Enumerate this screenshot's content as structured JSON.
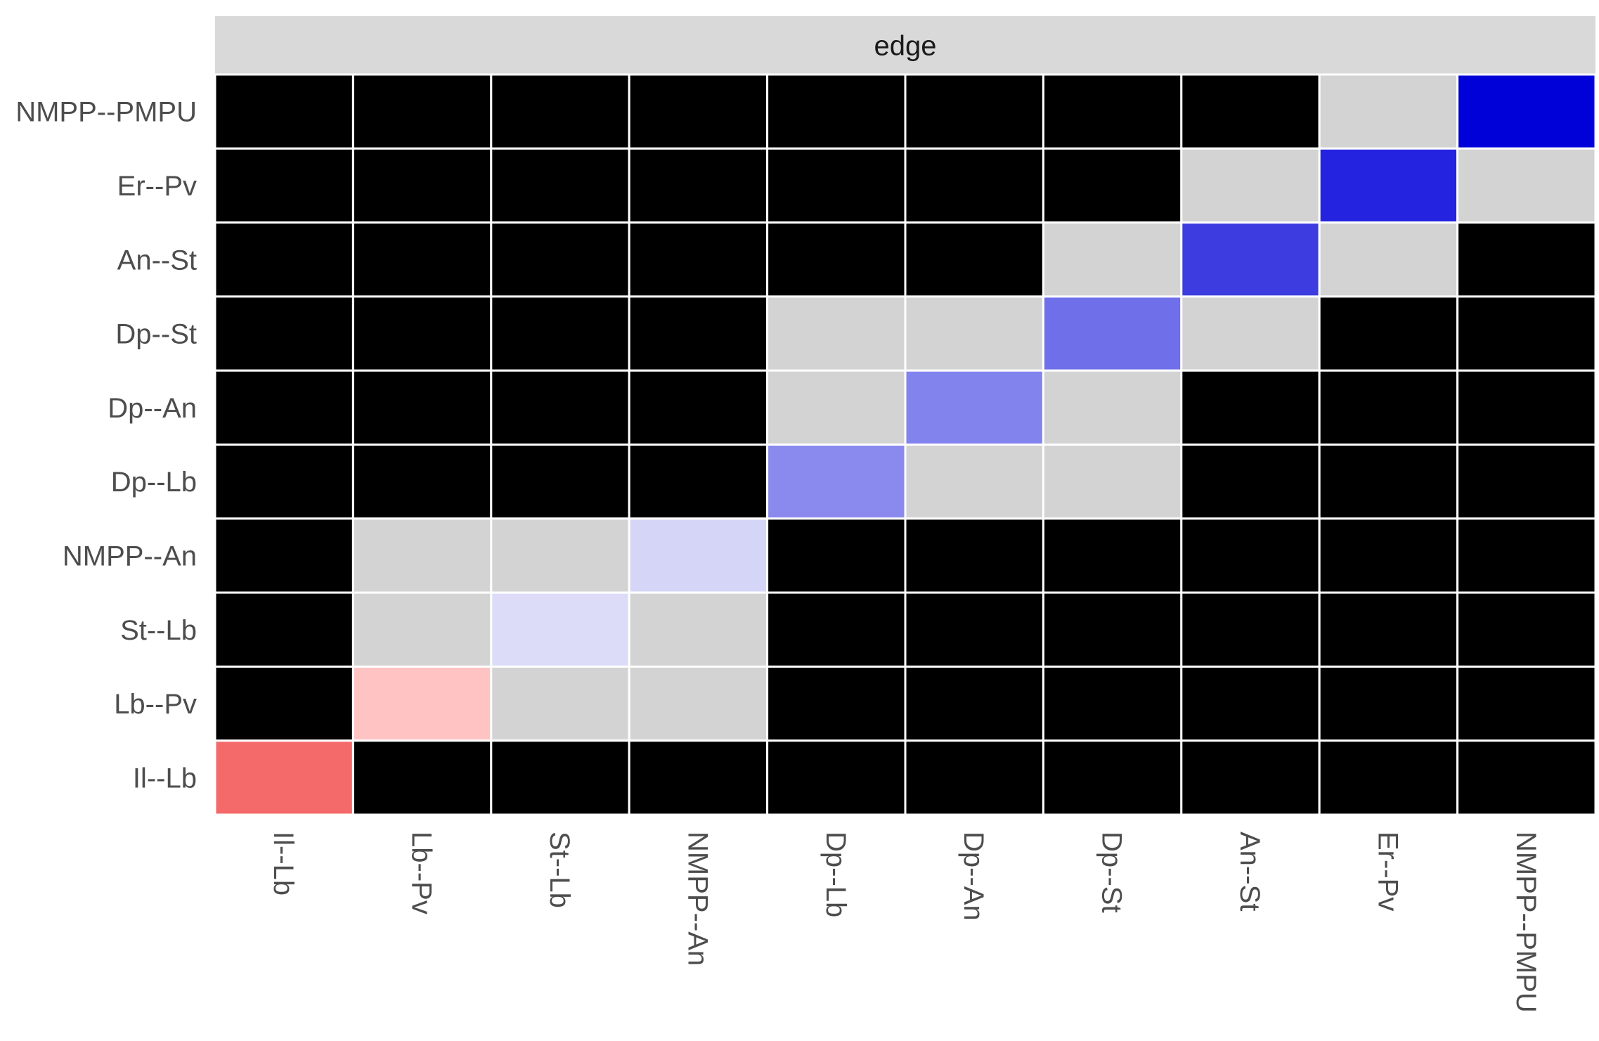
{
  "chart_data": {
    "type": "heatmap",
    "facet_strip": "edge",
    "x_labels": [
      "Il--Lb",
      "Lb--Pv",
      "St--Lb",
      "NMPP--An",
      "Dp--Lb",
      "Dp--An",
      "Dp--St",
      "An--St",
      "Er--Pv",
      "NMPP--PMPU"
    ],
    "y_labels_top_to_bottom": [
      "NMPP--PMPU",
      "Er--Pv",
      "An--St",
      "Dp--St",
      "Dp--An",
      "Dp--Lb",
      "NMPP--An",
      "St--Lb",
      "Lb--Pv",
      "Il--Lb"
    ],
    "cell_colors": [
      [
        "#000000",
        "#000000",
        "#000000",
        "#000000",
        "#000000",
        "#000000",
        "#000000",
        "#000000",
        "#d3d3d3",
        "#0000d8"
      ],
      [
        "#000000",
        "#000000",
        "#000000",
        "#000000",
        "#000000",
        "#000000",
        "#000000",
        "#d3d3d3",
        "#2323e0",
        "#d3d3d3"
      ],
      [
        "#000000",
        "#000000",
        "#000000",
        "#000000",
        "#000000",
        "#000000",
        "#d3d3d3",
        "#3c3ce0",
        "#d3d3d3",
        "#000000"
      ],
      [
        "#000000",
        "#000000",
        "#000000",
        "#000000",
        "#d3d3d3",
        "#d3d3d3",
        "#6f6fea",
        "#d3d3d3",
        "#000000",
        "#000000"
      ],
      [
        "#000000",
        "#000000",
        "#000000",
        "#000000",
        "#d3d3d3",
        "#8383ee",
        "#d3d3d3",
        "#000000",
        "#000000",
        "#000000"
      ],
      [
        "#000000",
        "#000000",
        "#000000",
        "#000000",
        "#8989ee",
        "#d3d3d3",
        "#d3d3d3",
        "#000000",
        "#000000",
        "#000000"
      ],
      [
        "#000000",
        "#d3d3d3",
        "#d3d3d3",
        "#d5d5f7",
        "#000000",
        "#000000",
        "#000000",
        "#000000",
        "#000000",
        "#000000"
      ],
      [
        "#000000",
        "#d3d3d3",
        "#dcdcf9",
        "#d3d3d3",
        "#000000",
        "#000000",
        "#000000",
        "#000000",
        "#000000",
        "#000000"
      ],
      [
        "#000000",
        "#ffc3c3",
        "#d3d3d3",
        "#d3d3d3",
        "#000000",
        "#000000",
        "#000000",
        "#000000",
        "#000000",
        "#000000"
      ],
      [
        "#f46a6a",
        "#000000",
        "#000000",
        "#000000",
        "#000000",
        "#000000",
        "#000000",
        "#000000",
        "#000000",
        "#000000"
      ]
    ],
    "grid_line_color": "#ffffff",
    "strip_color": "#d9d9d9"
  }
}
